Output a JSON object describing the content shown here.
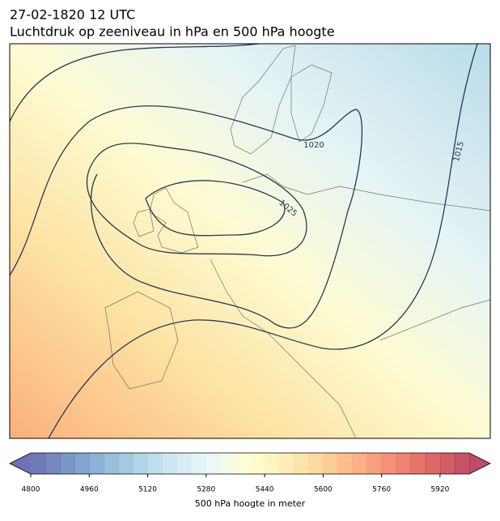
{
  "header": {
    "date": "27-02-1820 12 UTC",
    "title": "Luchtdruk op zeeniveau in hPa en 500 hPa hoogte"
  },
  "map": {
    "isobar_labels": [
      "1020",
      "1025",
      "1015"
    ]
  },
  "colorbar": {
    "label": "500 hPa hoogte in meter",
    "range": [
      4800,
      6000
    ],
    "step": 40,
    "ticks": [
      4800,
      4960,
      5120,
      5280,
      5440,
      5600,
      5760,
      5920
    ],
    "colors": [
      "#313695",
      "#4575b4",
      "#74add1",
      "#abd9e9",
      "#e0f3f8",
      "#ffffbf",
      "#fee090",
      "#fdae61",
      "#f46d43",
      "#d73027",
      "#a50026"
    ],
    "opacity": 0.7
  }
}
